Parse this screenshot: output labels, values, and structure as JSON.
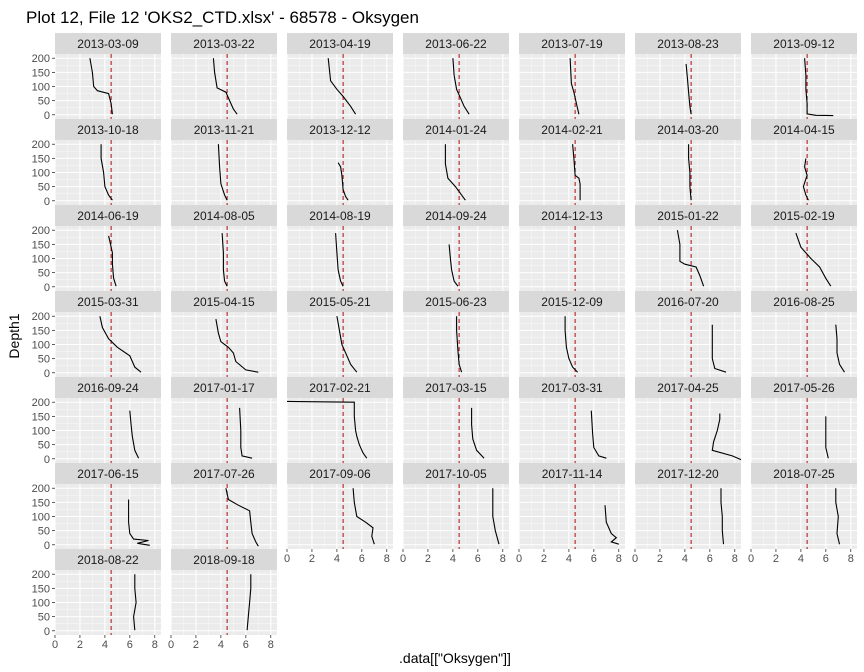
{
  "title": "Plot 12, File 12 'OKS2_CTD.xlsx' - 68578  -  Oksygen",
  "chart_data": {
    "type": "line",
    "title": "Plot 12, File 12 'OKS2_CTD.xlsx' - 68578  -  Oksygen",
    "xlabel": ".data[[\"Oksygen\"]]",
    "ylabel": "Depth1",
    "xlim": [
      0,
      8.5
    ],
    "ylim": [
      215,
      -15
    ],
    "y_reversed": true,
    "x_ticks": [
      0,
      2,
      4,
      6,
      8
    ],
    "y_ticks": [
      0,
      50,
      100,
      150,
      200
    ],
    "reference_line": {
      "x": 4.5,
      "color": "#d00000",
      "style": "dashed"
    },
    "grid": true,
    "facets": [
      {
        "label": "2013-03-09",
        "profile": [
          [
            4.6,
            2
          ],
          [
            4.5,
            40
          ],
          [
            4.3,
            75
          ],
          [
            3.4,
            85
          ],
          [
            3.1,
            100
          ],
          [
            3.0,
            150
          ],
          [
            2.8,
            200
          ]
        ]
      },
      {
        "label": "2013-03-22",
        "profile": [
          [
            5.3,
            2
          ],
          [
            5.0,
            20
          ],
          [
            4.7,
            50
          ],
          [
            4.4,
            80
          ],
          [
            3.7,
            95
          ],
          [
            3.5,
            150
          ],
          [
            3.4,
            200
          ]
        ]
      },
      {
        "label": "2013-04-19",
        "profile": [
          [
            5.5,
            2
          ],
          [
            5.1,
            30
          ],
          [
            4.5,
            65
          ],
          [
            4.0,
            90
          ],
          [
            3.5,
            120
          ],
          [
            3.3,
            200
          ]
        ]
      },
      {
        "label": "2013-06-22",
        "profile": [
          [
            5.3,
            2
          ],
          [
            4.9,
            30
          ],
          [
            4.6,
            60
          ],
          [
            4.3,
            90
          ],
          [
            4.1,
            140
          ],
          [
            4.0,
            200
          ]
        ]
      },
      {
        "label": "2013-07-19",
        "profile": [
          [
            4.8,
            2
          ],
          [
            4.6,
            40
          ],
          [
            4.4,
            80
          ],
          [
            4.2,
            110
          ],
          [
            4.1,
            200
          ]
        ]
      },
      {
        "label": "2013-08-23",
        "profile": [
          [
            4.5,
            2
          ],
          [
            4.4,
            30
          ],
          [
            4.3,
            80
          ],
          [
            4.2,
            130
          ],
          [
            4.1,
            180
          ]
        ]
      },
      {
        "label": "2013-09-12",
        "profile": [
          [
            6.6,
            -3
          ],
          [
            5.2,
            -2
          ],
          [
            4.5,
            3
          ],
          [
            4.5,
            40
          ],
          [
            4.4,
            90
          ],
          [
            4.4,
            140
          ],
          [
            4.3,
            200
          ]
        ]
      },
      {
        "label": "2013-10-18",
        "profile": [
          [
            4.6,
            2
          ],
          [
            4.3,
            20
          ],
          [
            4.0,
            50
          ],
          [
            3.9,
            100
          ],
          [
            3.7,
            150
          ],
          [
            3.7,
            200
          ]
        ]
      },
      {
        "label": "2013-11-21",
        "profile": [
          [
            4.5,
            2
          ],
          [
            4.3,
            20
          ],
          [
            4.0,
            60
          ],
          [
            3.9,
            120
          ],
          [
            3.8,
            200
          ]
        ]
      },
      {
        "label": "2013-12-12",
        "profile": [
          [
            4.9,
            2
          ],
          [
            4.7,
            15
          ],
          [
            4.5,
            40
          ],
          [
            4.4,
            90
          ],
          [
            4.3,
            120
          ],
          [
            4.1,
            135
          ]
        ]
      },
      {
        "label": "2014-01-24",
        "profile": [
          [
            5.0,
            2
          ],
          [
            4.7,
            20
          ],
          [
            4.2,
            50
          ],
          [
            3.6,
            80
          ],
          [
            3.4,
            130
          ],
          [
            3.4,
            200
          ]
        ]
      },
      {
        "label": "2014-02-21",
        "profile": [
          [
            4.9,
            2
          ],
          [
            4.9,
            60
          ],
          [
            4.8,
            80
          ],
          [
            4.5,
            90
          ],
          [
            4.4,
            150
          ],
          [
            4.3,
            200
          ]
        ]
      },
      {
        "label": "2014-03-20",
        "profile": [
          [
            4.5,
            2
          ],
          [
            4.4,
            50
          ],
          [
            4.4,
            100
          ],
          [
            4.3,
            150
          ],
          [
            4.3,
            200
          ]
        ]
      },
      {
        "label": "2014-04-15",
        "profile": [
          [
            4.6,
            2
          ],
          [
            4.4,
            20
          ],
          [
            4.2,
            50
          ],
          [
            4.5,
            90
          ],
          [
            4.3,
            120
          ],
          [
            4.4,
            150
          ]
        ]
      },
      {
        "label": "2014-06-19",
        "profile": [
          [
            4.9,
            2
          ],
          [
            4.7,
            30
          ],
          [
            4.6,
            80
          ],
          [
            4.6,
            120
          ],
          [
            4.4,
            160
          ],
          [
            4.3,
            180
          ]
        ]
      },
      {
        "label": "2014-08-05",
        "profile": [
          [
            4.5,
            2
          ],
          [
            4.3,
            20
          ],
          [
            4.2,
            60
          ],
          [
            4.2,
            120
          ],
          [
            4.1,
            190
          ]
        ]
      },
      {
        "label": "2014-08-19",
        "profile": [
          [
            4.5,
            2
          ],
          [
            4.3,
            20
          ],
          [
            4.1,
            60
          ],
          [
            4.0,
            120
          ],
          [
            3.9,
            190
          ]
        ]
      },
      {
        "label": "2014-09-24",
        "profile": [
          [
            4.4,
            2
          ],
          [
            4.1,
            20
          ],
          [
            3.9,
            60
          ],
          [
            3.8,
            100
          ],
          [
            3.7,
            150
          ]
        ]
      },
      {
        "label": "2014-12-13",
        "profile": []
      },
      {
        "label": "2015-01-22",
        "profile": [
          [
            5.5,
            2
          ],
          [
            5.2,
            40
          ],
          [
            4.9,
            70
          ],
          [
            4.0,
            80
          ],
          [
            3.6,
            90
          ],
          [
            3.6,
            150
          ],
          [
            3.4,
            200
          ]
        ]
      },
      {
        "label": "2015-02-19",
        "profile": [
          [
            6.4,
            2
          ],
          [
            6.0,
            30
          ],
          [
            5.5,
            70
          ],
          [
            4.8,
            100
          ],
          [
            4.0,
            140
          ],
          [
            3.6,
            190
          ]
        ]
      },
      {
        "label": "2015-03-31",
        "profile": [
          [
            6.9,
            2
          ],
          [
            6.4,
            20
          ],
          [
            6.0,
            60
          ],
          [
            5.0,
            90
          ],
          [
            4.3,
            120
          ],
          [
            3.8,
            160
          ],
          [
            3.6,
            200
          ]
        ]
      },
      {
        "label": "2015-04-15",
        "profile": [
          [
            7.0,
            2
          ],
          [
            6.0,
            10
          ],
          [
            5.2,
            40
          ],
          [
            5.0,
            70
          ],
          [
            4.6,
            90
          ],
          [
            4.0,
            110
          ],
          [
            3.8,
            140
          ],
          [
            3.6,
            190
          ]
        ]
      },
      {
        "label": "2015-05-21",
        "profile": [
          [
            5.6,
            2
          ],
          [
            5.1,
            30
          ],
          [
            4.8,
            60
          ],
          [
            4.4,
            100
          ],
          [
            4.2,
            150
          ],
          [
            4.0,
            200
          ]
        ]
      },
      {
        "label": "2015-06-23",
        "profile": [
          [
            4.7,
            2
          ],
          [
            4.5,
            30
          ],
          [
            4.4,
            80
          ],
          [
            4.3,
            150
          ],
          [
            4.3,
            200
          ]
        ]
      },
      {
        "label": "2015-12-09",
        "profile": [
          [
            4.7,
            2
          ],
          [
            4.3,
            20
          ],
          [
            4.0,
            50
          ],
          [
            3.8,
            90
          ],
          [
            3.7,
            150
          ],
          [
            3.7,
            200
          ]
        ]
      },
      {
        "label": "2016-07-20",
        "profile": [
          [
            7.3,
            2
          ],
          [
            6.4,
            15
          ],
          [
            6.2,
            50
          ],
          [
            6.2,
            100
          ],
          [
            6.2,
            170
          ]
        ]
      },
      {
        "label": "2016-08-25",
        "profile": [
          [
            7.5,
            2
          ],
          [
            7.1,
            30
          ],
          [
            6.9,
            70
          ],
          [
            6.9,
            120
          ],
          [
            6.8,
            170
          ]
        ]
      },
      {
        "label": "2016-09-24",
        "profile": [
          [
            6.7,
            2
          ],
          [
            6.4,
            30
          ],
          [
            6.2,
            80
          ],
          [
            6.1,
            120
          ],
          [
            6.0,
            170
          ]
        ]
      },
      {
        "label": "2017-01-17",
        "profile": [
          [
            6.5,
            2
          ],
          [
            5.7,
            10
          ],
          [
            5.6,
            40
          ],
          [
            5.6,
            100
          ],
          [
            5.5,
            180
          ]
        ]
      },
      {
        "label": "2017-02-21",
        "profile": [
          [
            6.4,
            2
          ],
          [
            6.1,
            20
          ],
          [
            5.8,
            50
          ],
          [
            5.6,
            80
          ],
          [
            5.5,
            100
          ],
          [
            5.4,
            150
          ],
          [
            5.4,
            200
          ],
          [
            0.0,
            203
          ]
        ]
      },
      {
        "label": "2017-03-15",
        "profile": [
          [
            6.5,
            2
          ],
          [
            5.9,
            30
          ],
          [
            5.6,
            70
          ],
          [
            5.5,
            120
          ],
          [
            5.5,
            180
          ]
        ]
      },
      {
        "label": "2017-03-31",
        "profile": [
          [
            7.0,
            2
          ],
          [
            6.4,
            10
          ],
          [
            6.0,
            40
          ],
          [
            5.9,
            90
          ],
          [
            5.8,
            170
          ]
        ]
      },
      {
        "label": "2017-04-25",
        "profile": [
          [
            8.5,
            -3
          ],
          [
            7.8,
            10
          ],
          [
            6.2,
            30
          ],
          [
            6.3,
            60
          ],
          [
            6.6,
            100
          ],
          [
            6.8,
            140
          ],
          [
            6.8,
            160
          ]
        ]
      },
      {
        "label": "2017-05-26",
        "profile": [
          [
            6.2,
            2
          ],
          [
            6.0,
            40
          ],
          [
            6.0,
            80
          ],
          [
            6.0,
            150
          ]
        ]
      },
      {
        "label": "2017-06-15",
        "profile": [
          [
            7.6,
            -2
          ],
          [
            6.6,
            5
          ],
          [
            7.5,
            15
          ],
          [
            6.3,
            20
          ],
          [
            6.0,
            40
          ],
          [
            5.9,
            80
          ],
          [
            5.9,
            160
          ]
        ]
      },
      {
        "label": "2017-07-26",
        "profile": [
          [
            7.0,
            -5
          ],
          [
            6.8,
            10
          ],
          [
            6.5,
            40
          ],
          [
            6.4,
            80
          ],
          [
            6.3,
            120
          ],
          [
            5.4,
            140
          ],
          [
            4.6,
            160
          ],
          [
            4.4,
            200
          ]
        ]
      },
      {
        "label": "2017-09-06",
        "profile": [
          [
            7.0,
            2
          ],
          [
            6.8,
            30
          ],
          [
            6.9,
            60
          ],
          [
            6.3,
            80
          ],
          [
            5.6,
            100
          ],
          [
            5.4,
            150
          ],
          [
            5.3,
            200
          ]
        ]
      },
      {
        "label": "2017-10-05",
        "profile": [
          [
            7.7,
            2
          ],
          [
            7.4,
            50
          ],
          [
            7.2,
            100
          ],
          [
            7.2,
            150
          ],
          [
            7.2,
            200
          ]
        ]
      },
      {
        "label": "2017-11-14",
        "profile": [
          [
            8.0,
            2
          ],
          [
            7.4,
            10
          ],
          [
            7.8,
            25
          ],
          [
            7.4,
            40
          ],
          [
            7.0,
            80
          ],
          [
            6.9,
            140
          ]
        ]
      },
      {
        "label": "2017-12-20",
        "profile": [
          [
            7.1,
            2
          ],
          [
            7.0,
            50
          ],
          [
            7.0,
            100
          ],
          [
            6.9,
            150
          ],
          [
            6.9,
            200
          ]
        ]
      },
      {
        "label": "2018-07-25",
        "profile": [
          [
            7.1,
            2
          ],
          [
            6.9,
            40
          ],
          [
            7.0,
            100
          ],
          [
            6.8,
            150
          ],
          [
            6.8,
            200
          ]
        ]
      },
      {
        "label": "2018-08-22",
        "profile": [
          [
            6.4,
            2
          ],
          [
            6.3,
            50
          ],
          [
            6.5,
            100
          ],
          [
            6.4,
            150
          ],
          [
            6.4,
            200
          ]
        ]
      },
      {
        "label": "2018-09-18",
        "profile": [
          [
            6.1,
            2
          ],
          [
            6.2,
            50
          ],
          [
            6.3,
            100
          ],
          [
            6.4,
            150
          ],
          [
            6.4,
            200
          ]
        ]
      }
    ]
  }
}
